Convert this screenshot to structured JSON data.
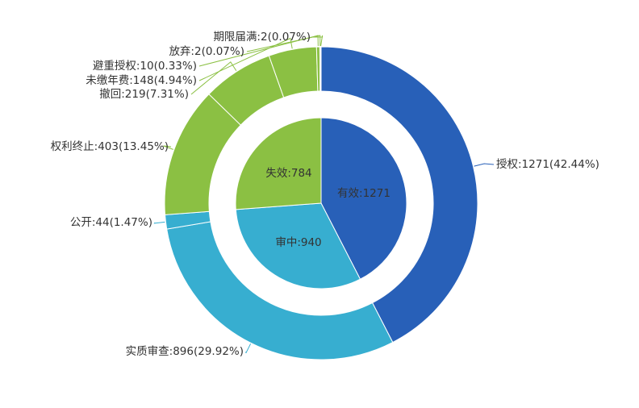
{
  "chart_data": {
    "type": "pie",
    "title": "",
    "inner": {
      "categories": [
        "有效",
        "审中",
        "失效"
      ],
      "values": [
        1271,
        940,
        784
      ],
      "colors": [
        "#2860b8",
        "#37aed0",
        "#8bc043"
      ],
      "labels": [
        "有效:1271",
        "审中:940",
        "失效:784"
      ]
    },
    "outer": {
      "categories": [
        "授权",
        "实质审查",
        "公开",
        "权利终止",
        "撤回",
        "未缴年费",
        "避重授权",
        "放弃",
        "期限届满"
      ],
      "values": [
        1271,
        896,
        44,
        403,
        219,
        148,
        10,
        2,
        2
      ],
      "percents": [
        "42.44%",
        "29.92%",
        "1.47%",
        "13.45%",
        "7.31%",
        "4.94%",
        "0.33%",
        "0.07%",
        "0.07%"
      ],
      "colors": [
        "#2860b8",
        "#37aed0",
        "#37aed0",
        "#8bc043",
        "#8bc043",
        "#8bc043",
        "#8bc043",
        "#8bc043",
        "#8bc043"
      ],
      "labels": [
        "授权:1271(42.44%)",
        "实质审查:896(29.92%)",
        "公开:44(1.47%)",
        "权利终止:403(13.45%)",
        "撤回:219(7.31%)",
        "未缴年费:148(4.94%)",
        "避重授权:10(0.33%)",
        "放弃:2(0.07%)",
        "期限届满:2(0.07%)"
      ]
    }
  }
}
